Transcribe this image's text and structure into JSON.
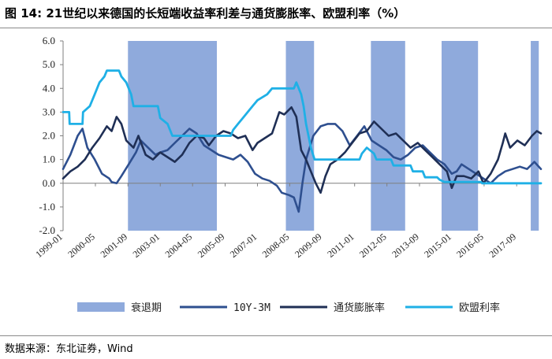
{
  "figure": {
    "title": "图 14:  21世纪以来德国的长短端收益率利差与通货膨胀率、欧盟利率（%）",
    "source": "数据来源：东北证券，Wind"
  },
  "colors": {
    "recession": "#8faadc",
    "spread": "#2e4f8f",
    "inflation": "#1f2f55",
    "eu_rate": "#1fb0e6"
  },
  "chart_data": {
    "type": "line",
    "ylim": [
      -2.0,
      6.0
    ],
    "yticks": [
      "6.0",
      "5.0",
      "4.0",
      "3.0",
      "2.0",
      "1.0",
      "0.0",
      "-1.0",
      "-2.0"
    ],
    "ytick_values": [
      6,
      5,
      4,
      3,
      2,
      1,
      0,
      -1,
      -2
    ],
    "xlim": [
      1999.0,
      2018.67
    ],
    "xtick_labels": [
      "1999-01",
      "2000-05",
      "2001-09",
      "2003-01",
      "2004-05",
      "2005-09",
      "2007-01",
      "2008-05",
      "2009-09",
      "2011-01",
      "2012-05",
      "2013-09",
      "2015-01",
      "2016-05",
      "2017-09"
    ],
    "xtick_values": [
      1999.0,
      2000.33,
      2001.67,
      2003.0,
      2004.33,
      2005.67,
      2007.0,
      2008.33,
      2009.67,
      2011.0,
      2012.33,
      2013.67,
      2015.0,
      2016.33,
      2017.67
    ],
    "recession_periods": [
      [
        2001.67,
        2005.33
      ],
      [
        2008.17,
        2009.33
      ],
      [
        2011.67,
        2013.08
      ],
      [
        2014.58,
        2016.08
      ],
      [
        2018.25,
        2018.58
      ]
    ],
    "series": [
      {
        "name": "10Y-3M",
        "points": [
          [
            1999.0,
            0.6
          ],
          [
            1999.3,
            1.2
          ],
          [
            1999.6,
            2.0
          ],
          [
            1999.8,
            2.3
          ],
          [
            2000.0,
            1.5
          ],
          [
            2000.3,
            1.0
          ],
          [
            2000.6,
            0.4
          ],
          [
            2000.9,
            0.2
          ],
          [
            2001.0,
            0.05
          ],
          [
            2001.2,
            0.0
          ],
          [
            2001.4,
            0.3
          ],
          [
            2001.7,
            0.8
          ],
          [
            2002.0,
            1.3
          ],
          [
            2002.2,
            1.8
          ],
          [
            2002.5,
            1.5
          ],
          [
            2002.8,
            1.2
          ],
          [
            2003.0,
            1.3
          ],
          [
            2003.3,
            1.4
          ],
          [
            2003.6,
            1.7
          ],
          [
            2003.9,
            2.0
          ],
          [
            2004.2,
            2.3
          ],
          [
            2004.5,
            2.1
          ],
          [
            2004.8,
            1.6
          ],
          [
            2005.1,
            1.4
          ],
          [
            2005.4,
            1.2
          ],
          [
            2005.7,
            1.1
          ],
          [
            2006.0,
            1.0
          ],
          [
            2006.3,
            1.2
          ],
          [
            2006.6,
            0.9
          ],
          [
            2006.9,
            0.4
          ],
          [
            2007.2,
            0.2
          ],
          [
            2007.5,
            0.1
          ],
          [
            2007.8,
            -0.1
          ],
          [
            2008.0,
            -0.4
          ],
          [
            2008.3,
            -0.5
          ],
          [
            2008.5,
            -0.6
          ],
          [
            2008.7,
            -1.2
          ],
          [
            2008.85,
            0.0
          ],
          [
            2009.0,
            1.0
          ],
          [
            2009.3,
            2.0
          ],
          [
            2009.6,
            2.4
          ],
          [
            2009.9,
            2.5
          ],
          [
            2010.2,
            2.5
          ],
          [
            2010.5,
            2.2
          ],
          [
            2010.8,
            1.6
          ],
          [
            2011.1,
            2.0
          ],
          [
            2011.4,
            2.4
          ],
          [
            2011.7,
            1.8
          ],
          [
            2012.0,
            1.6
          ],
          [
            2012.3,
            1.4
          ],
          [
            2012.6,
            1.1
          ],
          [
            2012.9,
            1.0
          ],
          [
            2013.2,
            1.2
          ],
          [
            2013.5,
            1.5
          ],
          [
            2013.8,
            1.6
          ],
          [
            2014.1,
            1.3
          ],
          [
            2014.4,
            1.0
          ],
          [
            2014.7,
            0.8
          ],
          [
            2015.0,
            0.4
          ],
          [
            2015.2,
            0.5
          ],
          [
            2015.4,
            0.8
          ],
          [
            2015.7,
            0.6
          ],
          [
            2016.0,
            0.4
          ],
          [
            2016.3,
            0.2
          ],
          [
            2016.6,
            0.0
          ],
          [
            2016.9,
            0.3
          ],
          [
            2017.2,
            0.5
          ],
          [
            2017.5,
            0.6
          ],
          [
            2017.8,
            0.7
          ],
          [
            2018.1,
            0.6
          ],
          [
            2018.4,
            0.9
          ],
          [
            2018.67,
            0.6
          ]
        ]
      },
      {
        "name": "通货膨胀率",
        "points": [
          [
            1999.0,
            0.2
          ],
          [
            1999.3,
            0.5
          ],
          [
            1999.6,
            0.7
          ],
          [
            1999.9,
            1.0
          ],
          [
            2000.2,
            1.5
          ],
          [
            2000.5,
            1.9
          ],
          [
            2000.8,
            2.4
          ],
          [
            2001.0,
            2.2
          ],
          [
            2001.2,
            2.8
          ],
          [
            2001.4,
            2.5
          ],
          [
            2001.6,
            1.8
          ],
          [
            2001.9,
            1.5
          ],
          [
            2002.1,
            2.0
          ],
          [
            2002.4,
            1.2
          ],
          [
            2002.7,
            1.0
          ],
          [
            2003.0,
            1.3
          ],
          [
            2003.3,
            1.1
          ],
          [
            2003.6,
            0.9
          ],
          [
            2003.9,
            1.2
          ],
          [
            2004.2,
            1.7
          ],
          [
            2004.5,
            2.0
          ],
          [
            2004.8,
            1.9
          ],
          [
            2005.0,
            1.6
          ],
          [
            2005.3,
            2.0
          ],
          [
            2005.6,
            2.2
          ],
          [
            2005.9,
            2.1
          ],
          [
            2006.2,
            1.9
          ],
          [
            2006.5,
            2.0
          ],
          [
            2006.8,
            1.4
          ],
          [
            2007.0,
            1.7
          ],
          [
            2007.3,
            1.9
          ],
          [
            2007.6,
            2.1
          ],
          [
            2007.9,
            3.0
          ],
          [
            2008.1,
            2.9
          ],
          [
            2008.4,
            3.2
          ],
          [
            2008.6,
            2.8
          ],
          [
            2008.8,
            1.4
          ],
          [
            2009.0,
            1.0
          ],
          [
            2009.2,
            0.5
          ],
          [
            2009.4,
            0.0
          ],
          [
            2009.6,
            -0.4
          ],
          [
            2009.8,
            0.3
          ],
          [
            2010.0,
            0.8
          ],
          [
            2010.3,
            1.0
          ],
          [
            2010.6,
            1.3
          ],
          [
            2010.9,
            1.7
          ],
          [
            2011.2,
            2.1
          ],
          [
            2011.5,
            2.2
          ],
          [
            2011.8,
            2.6
          ],
          [
            2012.1,
            2.3
          ],
          [
            2012.4,
            2.0
          ],
          [
            2012.7,
            2.1
          ],
          [
            2013.0,
            1.8
          ],
          [
            2013.3,
            1.5
          ],
          [
            2013.6,
            1.7
          ],
          [
            2013.9,
            1.4
          ],
          [
            2014.2,
            1.1
          ],
          [
            2014.5,
            0.8
          ],
          [
            2014.8,
            0.5
          ],
          [
            2015.0,
            -0.2
          ],
          [
            2015.2,
            0.3
          ],
          [
            2015.5,
            0.3
          ],
          [
            2015.8,
            0.2
          ],
          [
            2016.1,
            0.5
          ],
          [
            2016.3,
            0.0
          ],
          [
            2016.6,
            0.4
          ],
          [
            2016.9,
            1.0
          ],
          [
            2017.1,
            1.7
          ],
          [
            2017.2,
            2.1
          ],
          [
            2017.4,
            1.5
          ],
          [
            2017.7,
            1.8
          ],
          [
            2018.0,
            1.6
          ],
          [
            2018.3,
            2.0
          ],
          [
            2018.5,
            2.2
          ],
          [
            2018.67,
            2.1
          ]
        ]
      },
      {
        "name": "欧盟利率",
        "points": [
          [
            1999.0,
            3.0
          ],
          [
            1999.25,
            3.0
          ],
          [
            1999.27,
            2.5
          ],
          [
            1999.8,
            2.5
          ],
          [
            1999.82,
            3.0
          ],
          [
            2000.1,
            3.25
          ],
          [
            2000.3,
            3.75
          ],
          [
            2000.5,
            4.25
          ],
          [
            2000.7,
            4.5
          ],
          [
            2000.8,
            4.75
          ],
          [
            2001.3,
            4.75
          ],
          [
            2001.4,
            4.5
          ],
          [
            2001.6,
            4.25
          ],
          [
            2001.8,
            3.75
          ],
          [
            2001.9,
            3.25
          ],
          [
            2002.9,
            3.25
          ],
          [
            2003.0,
            2.75
          ],
          [
            2003.3,
            2.5
          ],
          [
            2003.5,
            2.0
          ],
          [
            2005.9,
            2.0
          ],
          [
            2006.0,
            2.25
          ],
          [
            2006.2,
            2.5
          ],
          [
            2006.4,
            2.75
          ],
          [
            2006.6,
            3.0
          ],
          [
            2006.8,
            3.25
          ],
          [
            2007.0,
            3.5
          ],
          [
            2007.4,
            3.75
          ],
          [
            2007.6,
            4.0
          ],
          [
            2008.5,
            4.0
          ],
          [
            2008.6,
            4.25
          ],
          [
            2008.8,
            3.75
          ],
          [
            2008.9,
            3.25
          ],
          [
            2009.0,
            2.5
          ],
          [
            2009.1,
            2.0
          ],
          [
            2009.2,
            1.5
          ],
          [
            2009.35,
            1.0
          ],
          [
            2011.2,
            1.0
          ],
          [
            2011.3,
            1.25
          ],
          [
            2011.5,
            1.5
          ],
          [
            2011.8,
            1.25
          ],
          [
            2011.9,
            1.0
          ],
          [
            2012.5,
            1.0
          ],
          [
            2012.6,
            0.75
          ],
          [
            2013.3,
            0.75
          ],
          [
            2013.4,
            0.5
          ],
          [
            2013.8,
            0.5
          ],
          [
            2013.9,
            0.25
          ],
          [
            2014.4,
            0.25
          ],
          [
            2014.5,
            0.15
          ],
          [
            2014.7,
            0.05
          ],
          [
            2016.2,
            0.05
          ],
          [
            2016.25,
            0.0
          ],
          [
            2018.67,
            0.0
          ]
        ]
      }
    ],
    "legend": [
      "衰退期",
      "10Y-3M",
      "通货膨胀率",
      "欧盟利率"
    ]
  }
}
